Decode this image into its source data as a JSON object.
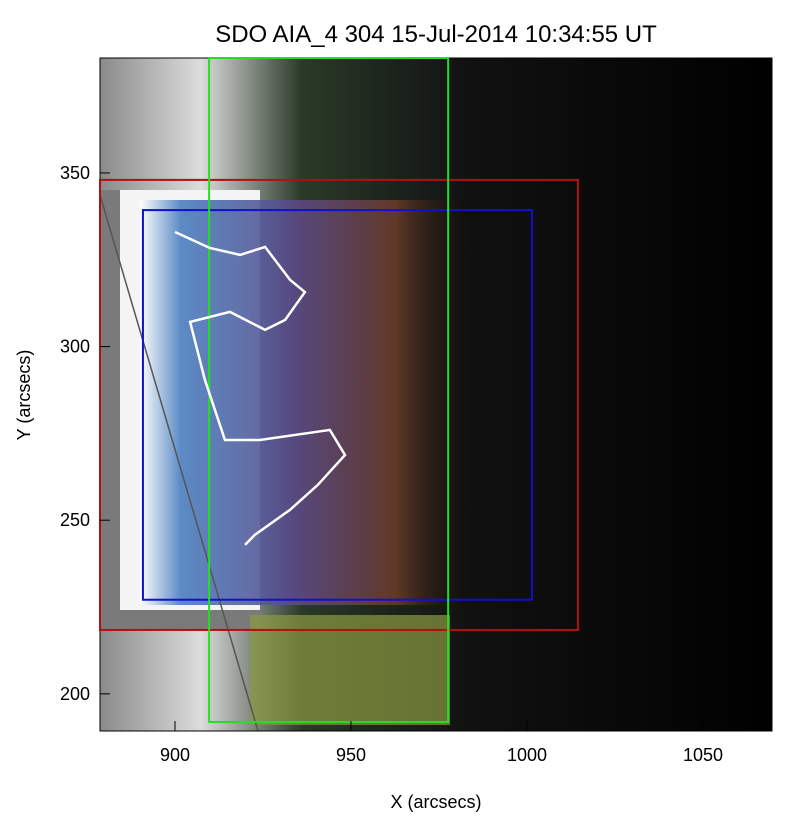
{
  "chart_data": {
    "type": "image",
    "title": "SDO AIA_4 304 15-Jul-2014 10:34:55 UT",
    "xlabel": "X (arcsecs)",
    "ylabel": "Y (arcsecs)",
    "xlim": [
      878.7,
      1069.6
    ],
    "ylim": [
      189.3,
      383.1
    ],
    "xticks": [
      900,
      950,
      1000,
      1050
    ],
    "yticks": [
      200,
      250,
      300,
      350
    ],
    "boxes": [
      {
        "color": "#b01010",
        "x": [
          878.7,
          1014.5
        ],
        "y": [
          218.4,
          348.0
        ]
      },
      {
        "color": "#1010d0",
        "x": [
          890.9,
          1001.4
        ],
        "y": [
          227.1,
          339.3
        ]
      },
      {
        "color": "#20e020",
        "x": [
          909.7,
          977.6
        ],
        "y": [
          191.9,
          383.1
        ]
      }
    ],
    "contours": [
      {
        "color": "#ffffff",
        "x": [
          900.0,
          909.9,
          918.5,
          925.6,
          932.7,
          936.9,
          931.3,
          925.6,
          915.6,
          904.3,
          908.5,
          914.2,
          924.1,
          944.0,
          948.3,
          940.6,
          932.7,
          922.7,
          919.9
        ],
        "y": [
          333.0,
          328.4,
          326.4,
          328.7,
          319.2,
          315.7,
          307.7,
          304.8,
          310.0,
          307.1,
          290.4,
          273.1,
          273.1,
          276.0,
          268.8,
          260.2,
          253.0,
          245.8,
          242.9
        ]
      }
    ]
  }
}
